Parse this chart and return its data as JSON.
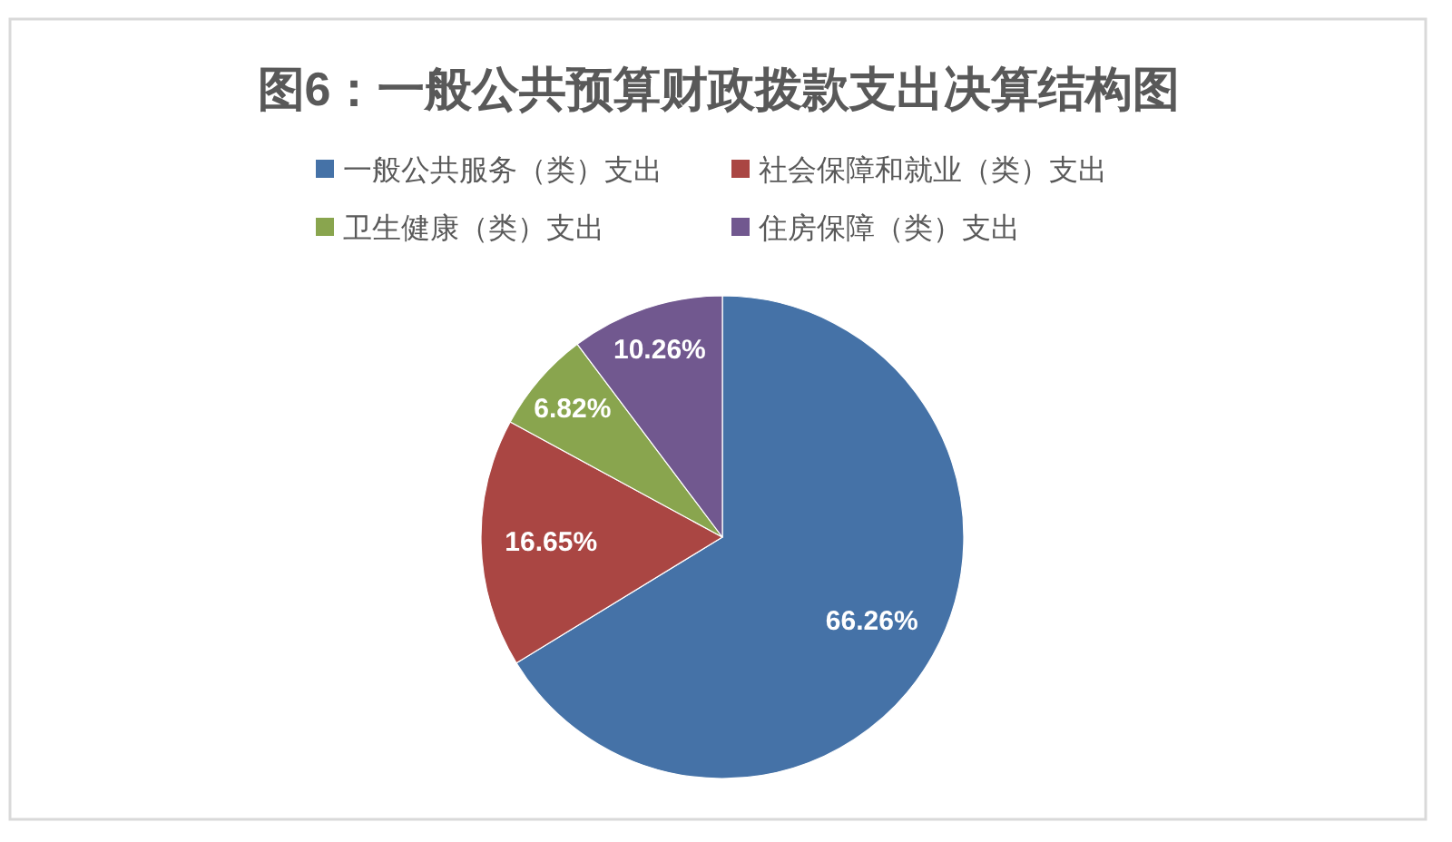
{
  "chart_data": {
    "type": "pie",
    "title": "图6：一般公共预算财政拨款支出决算结构图",
    "categories": [
      "一般公共服务（类）支出",
      "社会保障和就业（类）支出",
      "卫生健康（类）支出",
      "住房保障（类）支出"
    ],
    "values": [
      66.26,
      16.65,
      6.82,
      10.26
    ],
    "colors": [
      "#4572a7",
      "#aa4643",
      "#89a54e",
      "#71588f"
    ],
    "value_labels": [
      "66.26%",
      "16.65%",
      "6.82%",
      "10.26%"
    ],
    "legend": "top"
  }
}
